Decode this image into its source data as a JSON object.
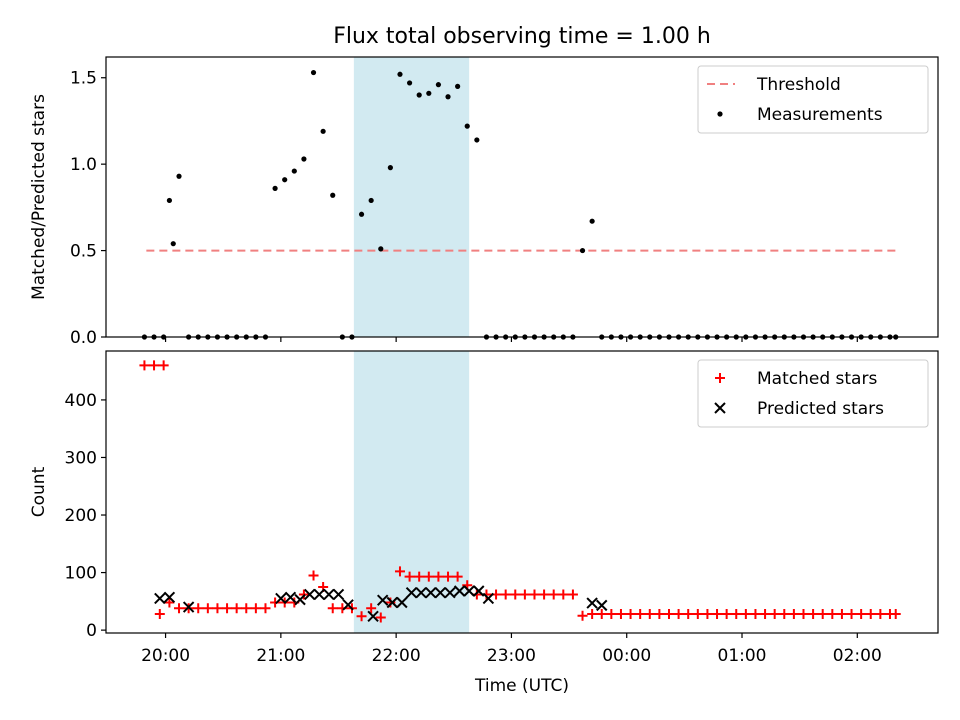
{
  "figure": {
    "title": "Flux total observing time = 1.00 h",
    "xlabel": "Time (UTC)"
  },
  "colors": {
    "threshold": "#f08080",
    "measurement": "#000000",
    "matched": "#ff0000",
    "predicted": "#000000",
    "highlight": "#add8e6"
  },
  "chart_data": [
    {
      "type": "scatter",
      "panel": "top",
      "ylabel": "Matched/Predicted stars",
      "x_ticks": [
        "20:00",
        "21:00",
        "22:00",
        "23:00",
        "00:00",
        "01:00",
        "02:00"
      ],
      "y_ticks": [
        "0.0",
        "0.5",
        "1.0",
        "1.5"
      ],
      "xlim": [
        "19:29",
        "02:42"
      ],
      "ylim": [
        0,
        1.62
      ],
      "grid": false,
      "legend_placement": "top-right",
      "highlight_span": [
        "21:38",
        "22:38"
      ],
      "series": [
        {
          "name": "Threshold",
          "style": "dashed-line",
          "x": [
            "19:50",
            "02:20"
          ],
          "y": [
            0.5,
            0.5
          ]
        },
        {
          "name": "Measurements",
          "style": "dots",
          "x": [
            "19:49",
            "19:54",
            "19:59",
            "19:64",
            "20:02",
            "20:07",
            "20:12",
            "20:17",
            "20:22",
            "20:27",
            "20:32",
            "20:37",
            "20:42",
            "20:47",
            "20:52",
            "20:57",
            "21:02",
            "21:07",
            "21:12",
            "21:17",
            "21:22",
            "21:27",
            "21:32",
            "21:37",
            "21:42",
            "21:47",
            "21:52",
            "21:57",
            "22:02",
            "22:07",
            "22:12",
            "22:17",
            "22:22",
            "22:27",
            "22:32",
            "22:37",
            "22:42",
            "22:47",
            "22:52",
            "22:57",
            "23:02",
            "23:07",
            "23:12",
            "23:17",
            "23:22",
            "23:27",
            "23:32",
            "23:37",
            "23:42",
            "23:47",
            "23:52",
            "23:57",
            "00:02",
            "00:07",
            "00:12",
            "00:17",
            "00:22",
            "00:27",
            "00:32",
            "00:37",
            "00:42",
            "00:47",
            "00:52",
            "00:57",
            "01:02",
            "01:07",
            "01:12",
            "01:17",
            "01:22",
            "01:27",
            "01:32",
            "01:37",
            "01:42",
            "01:47",
            "01:52",
            "01:57",
            "02:02",
            "02:07",
            "02:12",
            "02:17",
            "02:20"
          ],
          "y": [
            0,
            0,
            0,
            0.54,
            0.79,
            0.93,
            0,
            0,
            0,
            0,
            0,
            0,
            0,
            0,
            0,
            0.86,
            0.91,
            0.96,
            1.03,
            1.53,
            1.19,
            0.82,
            0,
            0,
            0.71,
            0.79,
            0.51,
            0.98,
            1.52,
            1.47,
            1.4,
            1.41,
            1.46,
            1.39,
            1.45,
            1.22,
            1.14,
            0,
            0,
            0,
            0,
            0,
            0,
            0,
            0,
            0,
            0,
            0.5,
            0.67,
            0,
            0,
            0,
            0,
            0,
            0,
            0,
            0,
            0,
            0,
            0,
            0,
            0,
            0,
            0,
            0,
            0,
            0,
            0,
            0,
            0,
            0,
            0,
            0,
            0,
            0,
            0,
            0,
            0,
            0,
            0,
            0
          ]
        }
      ]
    },
    {
      "type": "scatter",
      "panel": "bottom",
      "ylabel": "Count",
      "x_ticks": [
        "20:00",
        "21:00",
        "22:00",
        "23:00",
        "00:00",
        "01:00",
        "02:00"
      ],
      "y_ticks": [
        "0",
        "100",
        "200",
        "300",
        "400"
      ],
      "xlim": [
        "19:29",
        "02:42"
      ],
      "ylim": [
        -5,
        485
      ],
      "grid": false,
      "legend_placement": "top-right",
      "highlight_span": [
        "21:38",
        "22:38"
      ],
      "series": [
        {
          "name": "Matched stars",
          "style": "plus",
          "x": [
            "19:49",
            "19:54",
            "19:59",
            "19:57",
            "20:02",
            "20:07",
            "20:12",
            "20:17",
            "20:22",
            "20:27",
            "20:32",
            "20:37",
            "20:42",
            "20:47",
            "20:52",
            "20:57",
            "21:02",
            "21:07",
            "21:12",
            "21:17",
            "21:22",
            "21:27",
            "21:32",
            "21:37",
            "21:42",
            "21:47",
            "21:52",
            "21:57",
            "22:02",
            "22:07",
            "22:12",
            "22:17",
            "22:22",
            "22:27",
            "22:32",
            "22:37",
            "22:42",
            "22:47",
            "22:52",
            "22:57",
            "23:02",
            "23:07",
            "23:12",
            "23:17",
            "23:22",
            "23:27",
            "23:32",
            "23:37",
            "23:42",
            "23:47",
            "23:52",
            "23:57",
            "00:02",
            "00:07",
            "00:12",
            "00:17",
            "00:22",
            "00:27",
            "00:32",
            "00:37",
            "00:42",
            "00:47",
            "00:52",
            "00:57",
            "01:02",
            "01:07",
            "01:12",
            "01:17",
            "01:22",
            "01:27",
            "01:32",
            "01:37",
            "01:42",
            "01:47",
            "01:52",
            "01:57",
            "02:02",
            "02:07",
            "02:12",
            "02:17",
            "02:20"
          ],
          "y": [
            460,
            460,
            460,
            28,
            48,
            38,
            38,
            38,
            38,
            38,
            38,
            38,
            38,
            38,
            38,
            48,
            48,
            48,
            62,
            95,
            75,
            38,
            38,
            38,
            24,
            38,
            22,
            48,
            102,
            93,
            93,
            93,
            93,
            93,
            93,
            78,
            62,
            62,
            62,
            62,
            62,
            62,
            62,
            62,
            62,
            62,
            62,
            25,
            28,
            28,
            28,
            28,
            28,
            28,
            28,
            28,
            28,
            28,
            28,
            28,
            28,
            28,
            28,
            28,
            28,
            28,
            28,
            28,
            28,
            28,
            28,
            28,
            28,
            28,
            28,
            28,
            28,
            28,
            28,
            28,
            28
          ]
        },
        {
          "name": "Predicted stars",
          "style": "x",
          "x": [
            "19:57",
            "20:02",
            "20:12",
            "21:00",
            "21:05",
            "21:10",
            "21:15",
            "21:20",
            "21:25",
            "21:30",
            "21:35",
            "21:48",
            "21:53",
            "21:58",
            "22:03",
            "22:08",
            "22:13",
            "22:18",
            "22:23",
            "22:28",
            "22:33",
            "22:38",
            "22:43",
            "22:48",
            "23:42",
            "23:47"
          ],
          "y": [
            55,
            57,
            40,
            55,
            57,
            53,
            62,
            62,
            62,
            62,
            44,
            24,
            52,
            48,
            48,
            65,
            65,
            65,
            65,
            65,
            68,
            68,
            68,
            55,
            47,
            43
          ]
        }
      ]
    }
  ]
}
